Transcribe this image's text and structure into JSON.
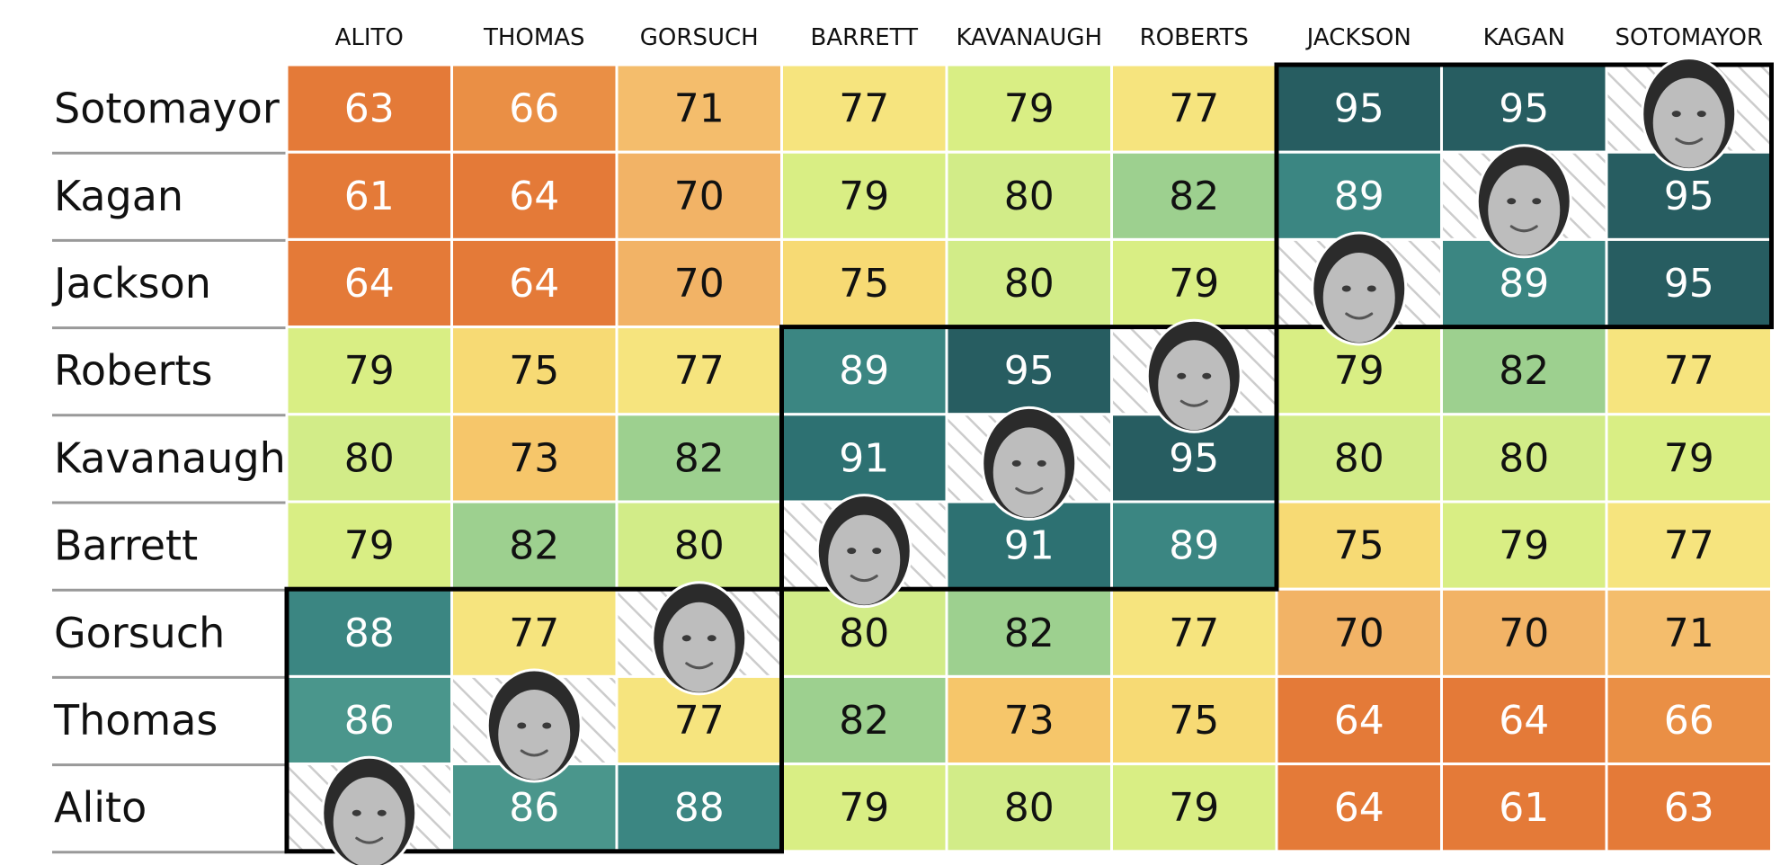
{
  "chart_data": {
    "type": "heatmap",
    "columns": [
      "ALITO",
      "THOMAS",
      "GORSUCH",
      "BARRETT",
      "KAVANAUGH",
      "ROBERTS",
      "JACKSON",
      "KAGAN",
      "SOTOMAYOR"
    ],
    "rows": [
      "Sotomayor",
      "Kagan",
      "Jackson",
      "Roberts",
      "Kavanaugh",
      "Barrett",
      "Gorsuch",
      "Thomas",
      "Alito"
    ],
    "values": [
      [
        63,
        66,
        71,
        77,
        79,
        77,
        95,
        95,
        null
      ],
      [
        61,
        64,
        70,
        79,
        80,
        82,
        89,
        null,
        95
      ],
      [
        64,
        64,
        70,
        75,
        80,
        79,
        null,
        89,
        95
      ],
      [
        79,
        75,
        77,
        89,
        95,
        null,
        79,
        82,
        77
      ],
      [
        80,
        73,
        82,
        91,
        null,
        95,
        80,
        80,
        79
      ],
      [
        79,
        82,
        80,
        null,
        91,
        89,
        75,
        79,
        77
      ],
      [
        88,
        77,
        null,
        80,
        82,
        77,
        70,
        70,
        71
      ],
      [
        86,
        null,
        77,
        82,
        73,
        75,
        64,
        64,
        66
      ],
      [
        null,
        86,
        88,
        79,
        80,
        79,
        64,
        61,
        63
      ]
    ],
    "blocks": [
      {
        "rows": [
          0,
          2
        ],
        "cols": [
          6,
          8
        ]
      },
      {
        "rows": [
          3,
          5
        ],
        "cols": [
          3,
          5
        ]
      },
      {
        "rows": [
          6,
          8
        ],
        "cols": [
          0,
          2
        ]
      }
    ],
    "diagonal": "justice-portrait",
    "legend": "none",
    "colors": {
      "v61": "#e47a38",
      "v63": "#e47a38",
      "v64": "#e47a38",
      "v66": "#ea8f45",
      "v70": "#f2b366",
      "v71": "#f4bd6c",
      "v73": "#f6c66a",
      "v75": "#f7da74",
      "v77": "#f6e47e",
      "v79": "#d9ee84",
      "v80": "#d2ec88",
      "v82": "#9dd08f",
      "v86": "#4a968c",
      "v88": "#3b8682",
      "v89": "#3b8682",
      "v91": "#2d7172",
      "v95": "#275d61",
      "light_text": "#ffffff",
      "dark_text": "#111111",
      "grid": "#ffffff",
      "rule": "#999999",
      "block_border": "#000000",
      "diagonal_stripe": "#cccccc"
    }
  }
}
